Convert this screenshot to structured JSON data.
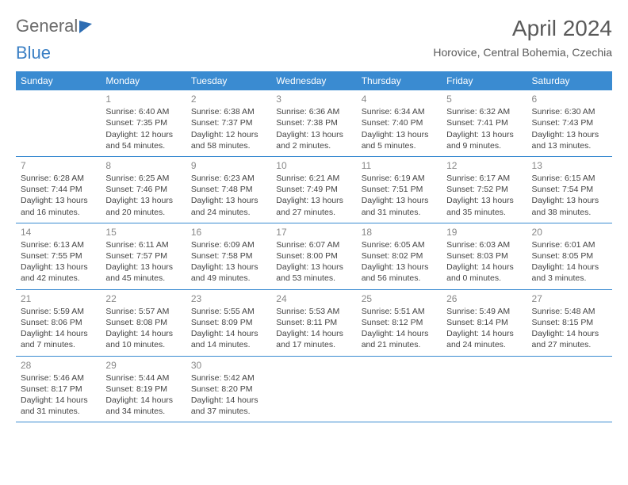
{
  "brand": {
    "general": "General",
    "blue": "Blue"
  },
  "header": {
    "month_title": "April 2024",
    "location": "Horovice, Central Bohemia, Czechia"
  },
  "colors": {
    "header_bar": "#3a8bd1",
    "divider": "#3a8bd1",
    "text": "#444444",
    "day_num": "#888888",
    "title": "#5a5a5a",
    "logo_gray": "#6b6b6b",
    "logo_blue": "#3a7fc4",
    "background": "#ffffff"
  },
  "weekdays": [
    "Sunday",
    "Monday",
    "Tuesday",
    "Wednesday",
    "Thursday",
    "Friday",
    "Saturday"
  ],
  "weeks": [
    [
      {
        "num": "",
        "sunrise": "",
        "sunset": "",
        "daylight": ""
      },
      {
        "num": "1",
        "sunrise": "Sunrise: 6:40 AM",
        "sunset": "Sunset: 7:35 PM",
        "daylight": "Daylight: 12 hours and 54 minutes."
      },
      {
        "num": "2",
        "sunrise": "Sunrise: 6:38 AM",
        "sunset": "Sunset: 7:37 PM",
        "daylight": "Daylight: 12 hours and 58 minutes."
      },
      {
        "num": "3",
        "sunrise": "Sunrise: 6:36 AM",
        "sunset": "Sunset: 7:38 PM",
        "daylight": "Daylight: 13 hours and 2 minutes."
      },
      {
        "num": "4",
        "sunrise": "Sunrise: 6:34 AM",
        "sunset": "Sunset: 7:40 PM",
        "daylight": "Daylight: 13 hours and 5 minutes."
      },
      {
        "num": "5",
        "sunrise": "Sunrise: 6:32 AM",
        "sunset": "Sunset: 7:41 PM",
        "daylight": "Daylight: 13 hours and 9 minutes."
      },
      {
        "num": "6",
        "sunrise": "Sunrise: 6:30 AM",
        "sunset": "Sunset: 7:43 PM",
        "daylight": "Daylight: 13 hours and 13 minutes."
      }
    ],
    [
      {
        "num": "7",
        "sunrise": "Sunrise: 6:28 AM",
        "sunset": "Sunset: 7:44 PM",
        "daylight": "Daylight: 13 hours and 16 minutes."
      },
      {
        "num": "8",
        "sunrise": "Sunrise: 6:25 AM",
        "sunset": "Sunset: 7:46 PM",
        "daylight": "Daylight: 13 hours and 20 minutes."
      },
      {
        "num": "9",
        "sunrise": "Sunrise: 6:23 AM",
        "sunset": "Sunset: 7:48 PM",
        "daylight": "Daylight: 13 hours and 24 minutes."
      },
      {
        "num": "10",
        "sunrise": "Sunrise: 6:21 AM",
        "sunset": "Sunset: 7:49 PM",
        "daylight": "Daylight: 13 hours and 27 minutes."
      },
      {
        "num": "11",
        "sunrise": "Sunrise: 6:19 AM",
        "sunset": "Sunset: 7:51 PM",
        "daylight": "Daylight: 13 hours and 31 minutes."
      },
      {
        "num": "12",
        "sunrise": "Sunrise: 6:17 AM",
        "sunset": "Sunset: 7:52 PM",
        "daylight": "Daylight: 13 hours and 35 minutes."
      },
      {
        "num": "13",
        "sunrise": "Sunrise: 6:15 AM",
        "sunset": "Sunset: 7:54 PM",
        "daylight": "Daylight: 13 hours and 38 minutes."
      }
    ],
    [
      {
        "num": "14",
        "sunrise": "Sunrise: 6:13 AM",
        "sunset": "Sunset: 7:55 PM",
        "daylight": "Daylight: 13 hours and 42 minutes."
      },
      {
        "num": "15",
        "sunrise": "Sunrise: 6:11 AM",
        "sunset": "Sunset: 7:57 PM",
        "daylight": "Daylight: 13 hours and 45 minutes."
      },
      {
        "num": "16",
        "sunrise": "Sunrise: 6:09 AM",
        "sunset": "Sunset: 7:58 PM",
        "daylight": "Daylight: 13 hours and 49 minutes."
      },
      {
        "num": "17",
        "sunrise": "Sunrise: 6:07 AM",
        "sunset": "Sunset: 8:00 PM",
        "daylight": "Daylight: 13 hours and 53 minutes."
      },
      {
        "num": "18",
        "sunrise": "Sunrise: 6:05 AM",
        "sunset": "Sunset: 8:02 PM",
        "daylight": "Daylight: 13 hours and 56 minutes."
      },
      {
        "num": "19",
        "sunrise": "Sunrise: 6:03 AM",
        "sunset": "Sunset: 8:03 PM",
        "daylight": "Daylight: 14 hours and 0 minutes."
      },
      {
        "num": "20",
        "sunrise": "Sunrise: 6:01 AM",
        "sunset": "Sunset: 8:05 PM",
        "daylight": "Daylight: 14 hours and 3 minutes."
      }
    ],
    [
      {
        "num": "21",
        "sunrise": "Sunrise: 5:59 AM",
        "sunset": "Sunset: 8:06 PM",
        "daylight": "Daylight: 14 hours and 7 minutes."
      },
      {
        "num": "22",
        "sunrise": "Sunrise: 5:57 AM",
        "sunset": "Sunset: 8:08 PM",
        "daylight": "Daylight: 14 hours and 10 minutes."
      },
      {
        "num": "23",
        "sunrise": "Sunrise: 5:55 AM",
        "sunset": "Sunset: 8:09 PM",
        "daylight": "Daylight: 14 hours and 14 minutes."
      },
      {
        "num": "24",
        "sunrise": "Sunrise: 5:53 AM",
        "sunset": "Sunset: 8:11 PM",
        "daylight": "Daylight: 14 hours and 17 minutes."
      },
      {
        "num": "25",
        "sunrise": "Sunrise: 5:51 AM",
        "sunset": "Sunset: 8:12 PM",
        "daylight": "Daylight: 14 hours and 21 minutes."
      },
      {
        "num": "26",
        "sunrise": "Sunrise: 5:49 AM",
        "sunset": "Sunset: 8:14 PM",
        "daylight": "Daylight: 14 hours and 24 minutes."
      },
      {
        "num": "27",
        "sunrise": "Sunrise: 5:48 AM",
        "sunset": "Sunset: 8:15 PM",
        "daylight": "Daylight: 14 hours and 27 minutes."
      }
    ],
    [
      {
        "num": "28",
        "sunrise": "Sunrise: 5:46 AM",
        "sunset": "Sunset: 8:17 PM",
        "daylight": "Daylight: 14 hours and 31 minutes."
      },
      {
        "num": "29",
        "sunrise": "Sunrise: 5:44 AM",
        "sunset": "Sunset: 8:19 PM",
        "daylight": "Daylight: 14 hours and 34 minutes."
      },
      {
        "num": "30",
        "sunrise": "Sunrise: 5:42 AM",
        "sunset": "Sunset: 8:20 PM",
        "daylight": "Daylight: 14 hours and 37 minutes."
      },
      {
        "num": "",
        "sunrise": "",
        "sunset": "",
        "daylight": ""
      },
      {
        "num": "",
        "sunrise": "",
        "sunset": "",
        "daylight": ""
      },
      {
        "num": "",
        "sunrise": "",
        "sunset": "",
        "daylight": ""
      },
      {
        "num": "",
        "sunrise": "",
        "sunset": "",
        "daylight": ""
      }
    ]
  ]
}
